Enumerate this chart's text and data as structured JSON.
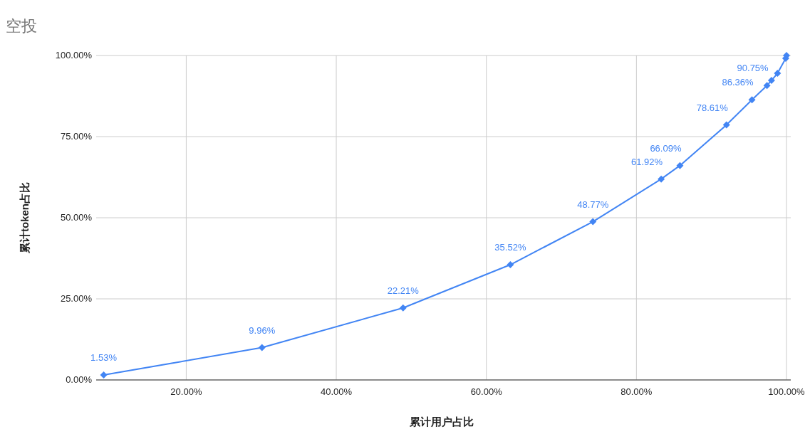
{
  "chart_data": {
    "type": "line",
    "title": "空投",
    "xlabel": "累计用户占比",
    "ylabel": "累计token占比",
    "x": [
      9.0,
      30.1,
      48.9,
      63.2,
      74.2,
      83.3,
      85.8,
      92.0,
      95.4,
      97.4,
      98.0,
      98.8,
      99.9,
      100
    ],
    "series": [
      {
        "color": "#4285f4",
        "values": [
          1.53,
          9.96,
          22.21,
          35.52,
          48.77,
          61.92,
          66.09,
          78.61,
          86.36,
          90.75,
          92.3,
          94.5,
          99.1,
          100
        ],
        "value_labels": [
          "1.53%",
          "9.96%",
          "22.21%",
          "35.52%",
          "48.77%",
          "61.92%",
          "66.09%",
          "78.61%",
          "86.36%",
          "90.75%",
          null,
          null,
          null,
          null
        ]
      }
    ],
    "xlim": [
      8,
      100
    ],
    "ylim": [
      0,
      100
    ],
    "xticks": [
      {
        "value": 20,
        "label": "20.00%"
      },
      {
        "value": 40,
        "label": "40.00%"
      },
      {
        "value": 60,
        "label": "60.00%"
      },
      {
        "value": 80,
        "label": "80.00%"
      },
      {
        "value": 100,
        "label": "100.00%"
      }
    ],
    "yticks": [
      {
        "value": 0,
        "label": "0.00%"
      },
      {
        "value": 25,
        "label": "25.00%"
      },
      {
        "value": 50,
        "label": "50.00%"
      },
      {
        "value": 75,
        "label": "75.00%"
      },
      {
        "value": 100,
        "label": "100.00%"
      }
    ],
    "grid": true,
    "marker": "diamond",
    "line_style": "solid"
  }
}
